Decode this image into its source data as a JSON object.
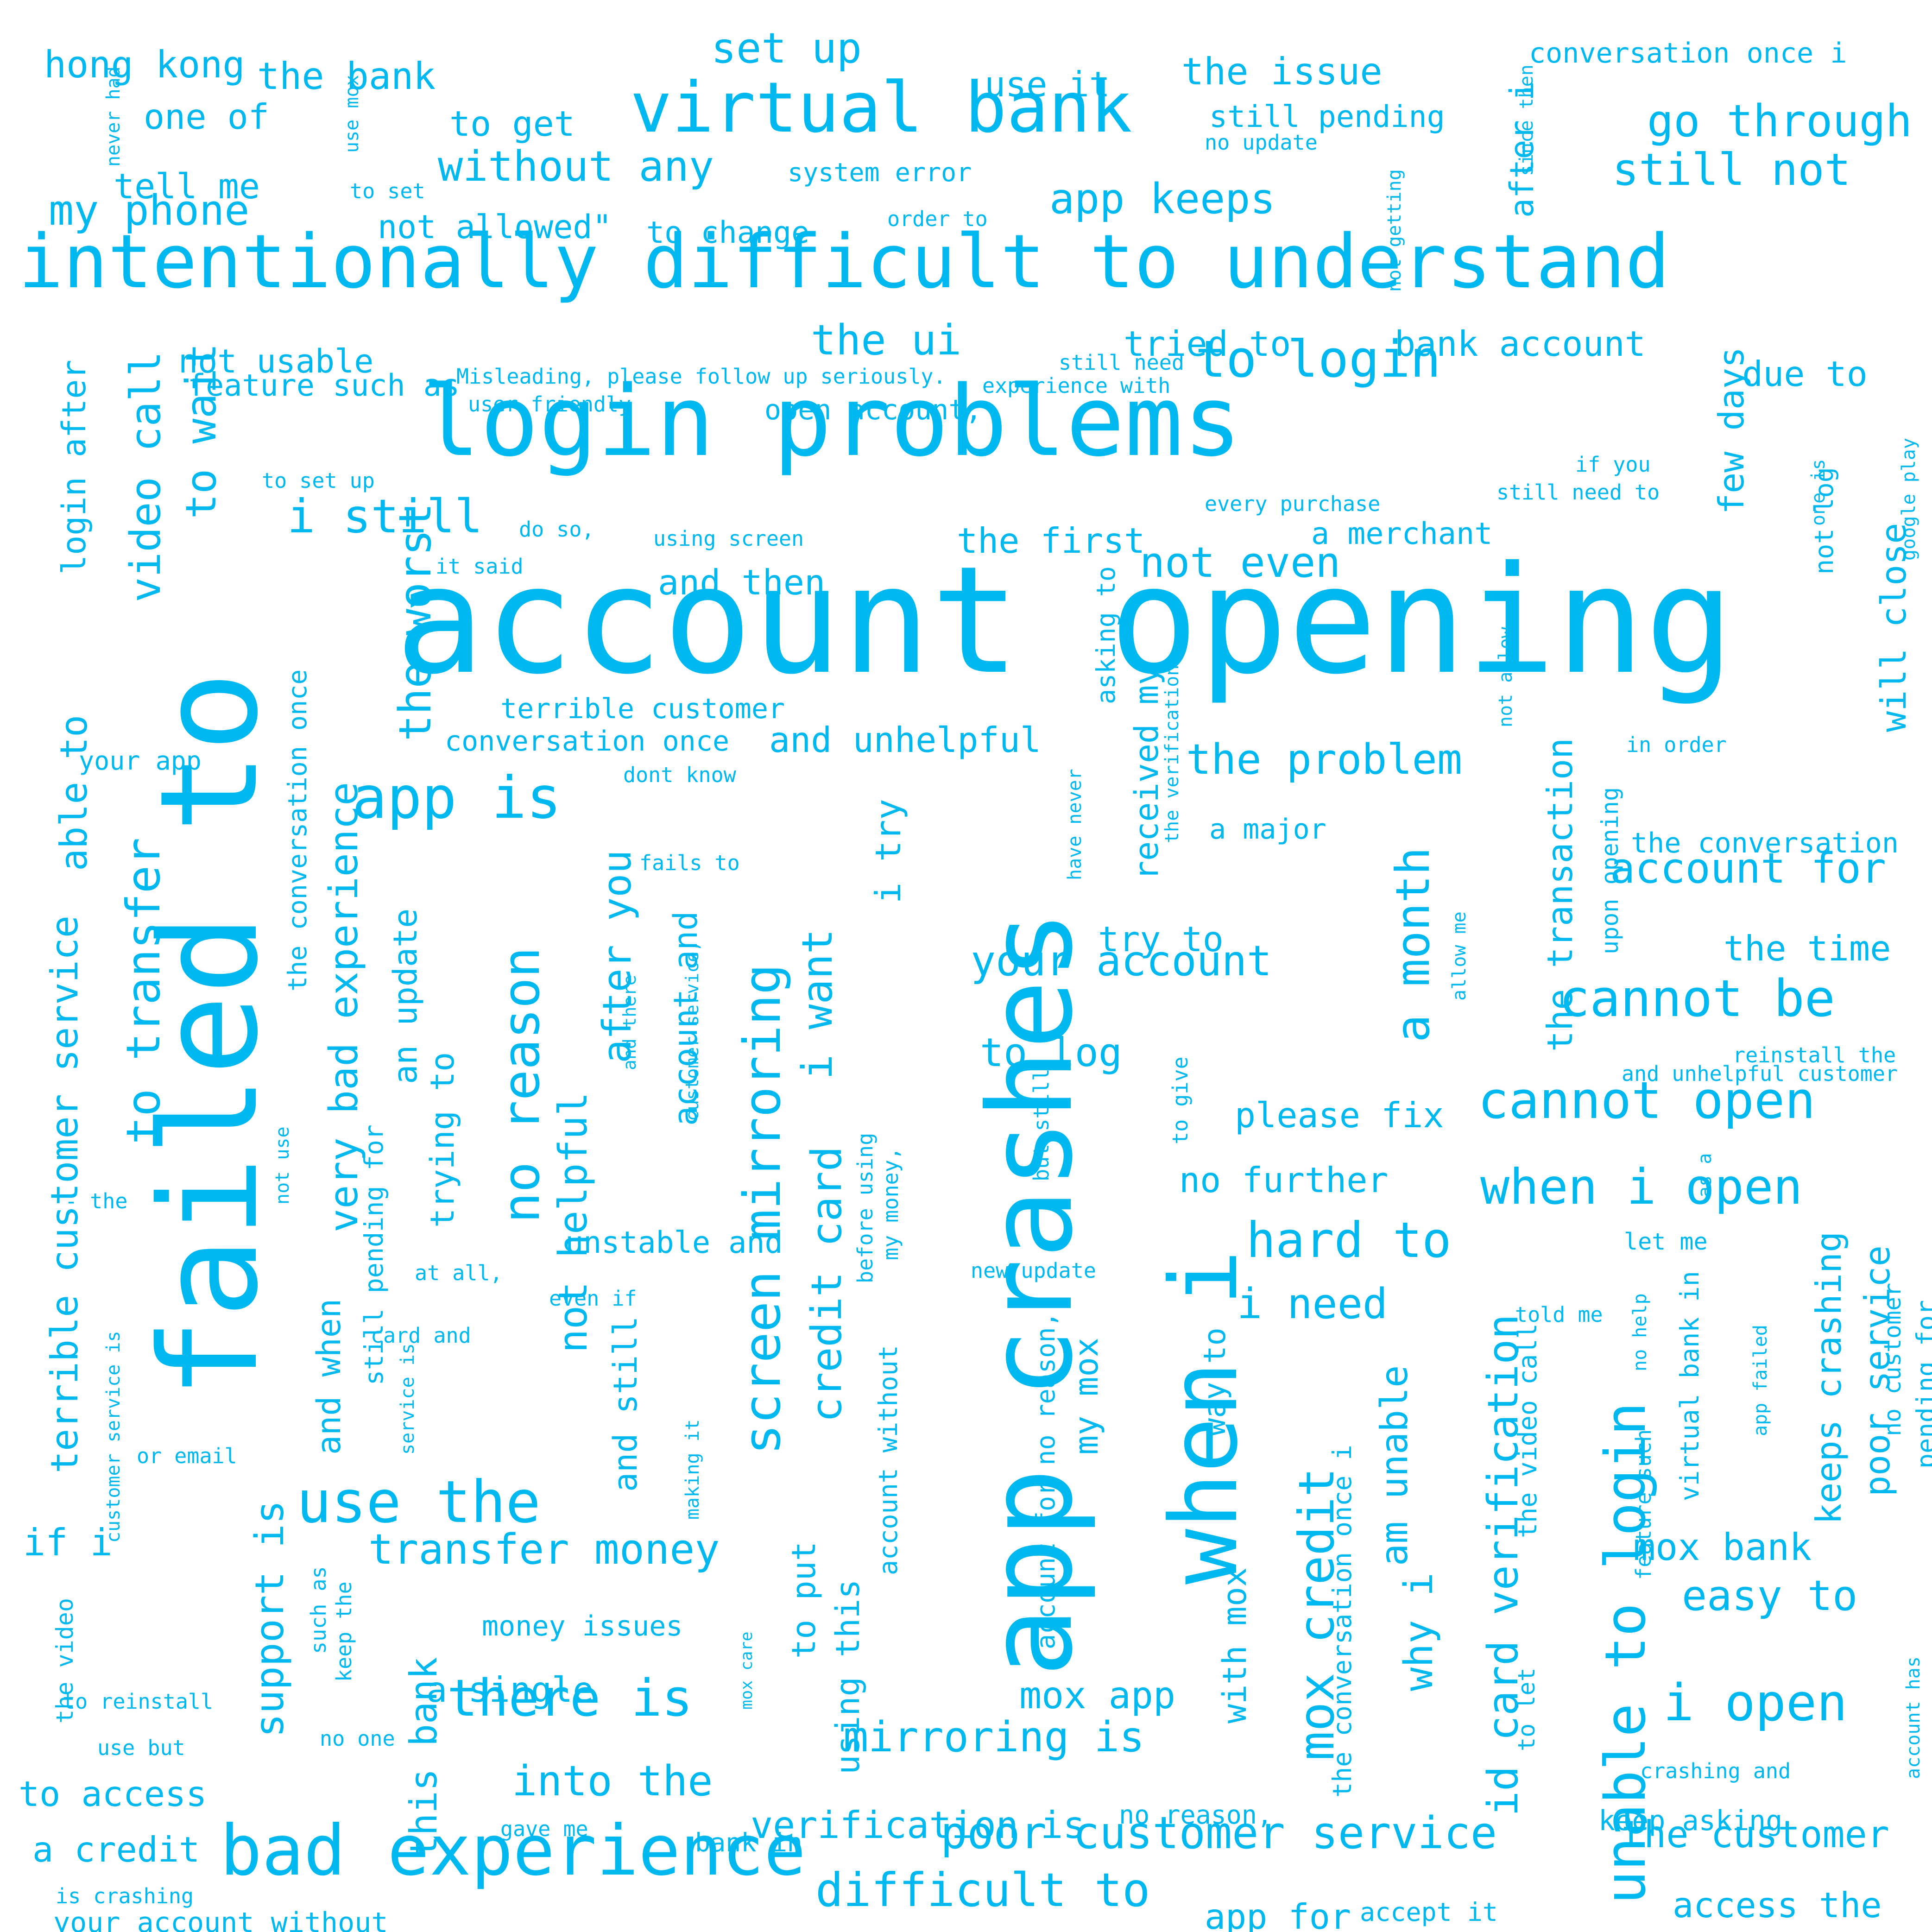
{
  "color": "#00B8F0",
  "words": [
    {
      "text": "account opening",
      "name": "word-account-opening"
    },
    {
      "text": "failed to",
      "name": "word-failed-to"
    },
    {
      "text": "app crashes",
      "name": "word-app-crashes"
    },
    {
      "text": "login problems",
      "name": "word-login-problems"
    },
    {
      "text": "intentionally difficult to understand",
      "name": "word-intentionally-difficult"
    },
    {
      "text": "when i",
      "name": "word-when-i"
    },
    {
      "text": "bad experience",
      "name": "word-bad-experience"
    },
    {
      "text": "virtual bank",
      "name": "word-virtual-bank"
    },
    {
      "text": "unable to login",
      "name": "word-unable-to-login"
    },
    {
      "text": "no reason",
      "name": "word-no-reason"
    },
    {
      "text": "screen mirroring",
      "name": "word-screen-mirroring"
    },
    {
      "text": "mox credit",
      "name": "word-mox-credit"
    },
    {
      "text": "a month",
      "name": "word-a-month"
    },
    {
      "text": "to transfer",
      "name": "word-to-transfer"
    },
    {
      "text": "id card verification",
      "name": "word-id-card-verification"
    },
    {
      "text": "use the",
      "name": "word-use-the"
    },
    {
      "text": "app is",
      "name": "word-app-is"
    },
    {
      "text": "cannot open",
      "name": "word-cannot-open"
    },
    {
      "text": "poor customer service",
      "name": "word-poor-customer-service"
    },
    {
      "text": "i still",
      "name": "word-i-still"
    },
    {
      "text": "the worst",
      "name": "word-the-worst"
    },
    {
      "text": "to login",
      "name": "word-to-login"
    },
    {
      "text": "there is",
      "name": "word-there-is"
    },
    {
      "text": "transfer money",
      "name": "word-transfer-money"
    },
    {
      "text": "hard to",
      "name": "word-hard-to"
    },
    {
      "text": "difficult to",
      "name": "word-difficult-to"
    },
    {
      "text": "when i open",
      "name": "word-when-i-open"
    },
    {
      "text": "i open",
      "name": "word-i-open"
    },
    {
      "text": "cannot be",
      "name": "word-cannot-be"
    },
    {
      "text": "to wait",
      "name": "word-to-wait"
    },
    {
      "text": "video call",
      "name": "word-video-call"
    },
    {
      "text": "very bad experience",
      "name": "word-very-bad-experience"
    },
    {
      "text": "terrible customer service",
      "name": "word-terrible-customer-service"
    },
    {
      "text": "credit card",
      "name": "word-credit-card"
    },
    {
      "text": "i want",
      "name": "word-i-want"
    },
    {
      "text": "mirroring is",
      "name": "word-mirroring-is"
    },
    {
      "text": "into the",
      "name": "word-into-the"
    },
    {
      "text": "your account",
      "name": "word-your-account"
    },
    {
      "text": "set up",
      "name": "word-set-up"
    },
    {
      "text": "go through",
      "name": "word-go-through"
    },
    {
      "text": "still not",
      "name": "word-still-not"
    },
    {
      "text": "without any",
      "name": "word-without-any"
    },
    {
      "text": "app keeps",
      "name": "word-app-keeps"
    },
    {
      "text": "my phone",
      "name": "word-my-phone"
    },
    {
      "text": "the problem",
      "name": "word-the-problem"
    },
    {
      "text": "not even",
      "name": "word-not-even"
    },
    {
      "text": "the ui",
      "name": "word-the-ui"
    },
    {
      "text": "account for",
      "name": "word-account-for"
    },
    {
      "text": "easy to",
      "name": "word-easy-to"
    },
    {
      "text": "the customer",
      "name": "word-the-customer"
    },
    {
      "text": "i need",
      "name": "word-i-need"
    },
    {
      "text": "not helpful",
      "name": "word-not-helpful"
    },
    {
      "text": "after you",
      "name": "word-after-you"
    },
    {
      "text": "support is",
      "name": "word-support-is"
    },
    {
      "text": "this bank",
      "name": "word-this-bank"
    },
    {
      "text": "keeps crashing",
      "name": "word-keeps-crashing"
    },
    {
      "text": "poor service",
      "name": "word-poor-service"
    },
    {
      "text": "mox bank",
      "name": "word-mox-bank"
    },
    {
      "text": "why i",
      "name": "word-why-i"
    },
    {
      "text": "am unable",
      "name": "word-am-unable"
    },
    {
      "text": "able to",
      "name": "word-able-to"
    },
    {
      "text": "if i",
      "name": "word-if-i"
    },
    {
      "text": "login after",
      "name": "word-login-after"
    },
    {
      "text": "an update",
      "name": "word-an-update"
    },
    {
      "text": "trying to",
      "name": "word-trying-to"
    },
    {
      "text": "and when",
      "name": "word-and-when"
    },
    {
      "text": "and still",
      "name": "word-and-still"
    },
    {
      "text": "account and",
      "name": "word-account-and"
    },
    {
      "text": "to log",
      "name": "word-to-log"
    },
    {
      "text": "tried to",
      "name": "word-tried-to"
    },
    {
      "text": "bank account",
      "name": "word-bank-account"
    },
    {
      "text": "please fix",
      "name": "word-please-fix"
    },
    {
      "text": "no further",
      "name": "word-no-further"
    },
    {
      "text": "the first",
      "name": "word-the-first"
    },
    {
      "text": "and then",
      "name": "word-and-then"
    },
    {
      "text": "and unhelpful",
      "name": "word-and-unhelpful"
    },
    {
      "text": "the transaction",
      "name": "word-the-transaction"
    },
    {
      "text": "few days",
      "name": "word-few-days"
    },
    {
      "text": "will close",
      "name": "word-will-close"
    },
    {
      "text": "the time",
      "name": "word-the-time"
    },
    {
      "text": "due to",
      "name": "word-due-to"
    },
    {
      "text": "a merchant",
      "name": "word-a-merchant"
    },
    {
      "text": "to access",
      "name": "word-to-access"
    },
    {
      "text": "a credit",
      "name": "word-a-credit"
    },
    {
      "text": "access the",
      "name": "word-access-the"
    },
    {
      "text": "app for",
      "name": "word-app-for"
    },
    {
      "text": "verification is",
      "name": "word-verification-is"
    },
    {
      "text": "mox app",
      "name": "word-mox-app"
    },
    {
      "text": "with mox",
      "name": "word-with-mox"
    },
    {
      "text": "my mox",
      "name": "word-my-mox"
    },
    {
      "text": "received my",
      "name": "word-received-my"
    },
    {
      "text": "try to",
      "name": "word-try-to"
    },
    {
      "text": "i try",
      "name": "word-i-try"
    },
    {
      "text": "a single",
      "name": "word-a-single"
    },
    {
      "text": "to put",
      "name": "word-to-put"
    },
    {
      "text": "using this",
      "name": "word-using-this"
    },
    {
      "text": "the issue",
      "name": "word-the-issue"
    },
    {
      "text": "the bank",
      "name": "word-the-bank"
    },
    {
      "text": "hong kong",
      "name": "word-hong-kong"
    },
    {
      "text": "one of",
      "name": "word-one-of"
    },
    {
      "text": "tell me",
      "name": "word-tell-me"
    },
    {
      "text": "to get",
      "name": "word-to-get"
    },
    {
      "text": "use it",
      "name": "word-use-it"
    },
    {
      "text": "not allowed\"",
      "name": "word-not-allowed"
    },
    {
      "text": "to change",
      "name": "word-to-change"
    },
    {
      "text": "still pending",
      "name": "word-still-pending"
    },
    {
      "text": "after i",
      "name": "word-after-i"
    },
    {
      "text": "not usable",
      "name": "word-not-usable"
    },
    {
      "text": "feature such as",
      "name": "word-feature-such-as"
    },
    {
      "text": "unstable and",
      "name": "word-unstable-and"
    },
    {
      "text": "money issues",
      "name": "word-money-issues"
    },
    {
      "text": "way to",
      "name": "word-way-to"
    },
    {
      "text": "the video call",
      "name": "word-the-video-call"
    },
    {
      "text": "the conversation once i",
      "name": "word-the-conversation-once-i"
    },
    {
      "text": "the conversation once",
      "name": "word-the-conversation-once"
    },
    {
      "text": "conversation once i",
      "name": "word-conversation-once-i-top"
    },
    {
      "text": "conversation once",
      "name": "word-conversation-once"
    },
    {
      "text": "terrible customer",
      "name": "word-terrible-customer"
    },
    {
      "text": "the conversation",
      "name": "word-the-conversation"
    },
    {
      "text": "a major",
      "name": "word-a-major"
    },
    {
      "text": "keep asking",
      "name": "word-keep-asking"
    },
    {
      "text": "still pending for",
      "name": "word-still-pending-for"
    },
    {
      "text": "pending for",
      "name": "word-pending-for"
    },
    {
      "text": "no customer",
      "name": "word-no-customer"
    },
    {
      "text": "virtual bank in",
      "name": "word-virtual-bank-in"
    },
    {
      "text": "account for no reason,",
      "name": "word-account-for-no-reason"
    },
    {
      "text": "account without",
      "name": "word-account-without"
    },
    {
      "text": "upon opening",
      "name": "word-upon-opening"
    },
    {
      "text": "asking to",
      "name": "word-asking-to"
    },
    {
      "text": "open account,",
      "name": "word-open-account"
    },
    {
      "text": "system error",
      "name": "word-system-error"
    },
    {
      "text": "user friendly",
      "name": "word-user-friendly"
    },
    {
      "text": "your app",
      "name": "word-your-app"
    },
    {
      "text": "your account without",
      "name": "word-your-account-without"
    },
    {
      "text": "is crashing",
      "name": "word-is-crashing"
    },
    {
      "text": "bank in",
      "name": "word-bank-in"
    },
    {
      "text": "no reason,",
      "name": "word-no-reason-comma"
    },
    {
      "text": "accept it",
      "name": "word-accept-it"
    },
    {
      "text": "and unhelpful customer",
      "name": "word-and-unhelpful-customer"
    },
    {
      "text": "reinstall the",
      "name": "word-reinstall-the"
    },
    {
      "text": "in order",
      "name": "word-in-order"
    },
    {
      "text": "if you",
      "name": "word-if-you"
    },
    {
      "text": "still need to",
      "name": "word-still-need-to"
    },
    {
      "text": "still need",
      "name": "word-still-need"
    },
    {
      "text": "experience with",
      "name": "word-experience-with"
    },
    {
      "text": "every purchase",
      "name": "word-every-purchase"
    },
    {
      "text": "not log",
      "name": "word-not-log"
    },
    {
      "text": "google play",
      "name": "word-google-play"
    },
    {
      "text": "one is",
      "name": "word-one-is"
    },
    {
      "text": "since then",
      "name": "word-since-then"
    },
    {
      "text": "not getting",
      "name": "word-not-getting"
    },
    {
      "text": "no update",
      "name": "word-no-update"
    },
    {
      "text": "order to",
      "name": "word-order-to"
    },
    {
      "text": "to set",
      "name": "word-to-set"
    },
    {
      "text": "to set up",
      "name": "word-to-set-up"
    },
    {
      "text": "use mox",
      "name": "word-use-mox"
    },
    {
      "text": "never had",
      "name": "word-never-had"
    },
    {
      "text": "Misleading, please follow up seriously.",
      "name": "word-misleading"
    },
    {
      "text": "do so,",
      "name": "word-do-so"
    },
    {
      "text": "using screen",
      "name": "word-using-screen"
    },
    {
      "text": "it said",
      "name": "word-it-said"
    },
    {
      "text": "dont know",
      "name": "word-dont-know"
    },
    {
      "text": "fails to",
      "name": "word-fails-to"
    },
    {
      "text": "the verification",
      "name": "word-the-verification"
    },
    {
      "text": "have never",
      "name": "word-have-never"
    },
    {
      "text": "not allow",
      "name": "word-not-allow"
    },
    {
      "text": "allow me",
      "name": "word-allow-me"
    },
    {
      "text": "to give",
      "name": "word-to-give"
    },
    {
      "text": "but still",
      "name": "word-but-still"
    },
    {
      "text": "before using",
      "name": "word-before-using"
    },
    {
      "text": "my money,",
      "name": "word-my-money"
    },
    {
      "text": "new update",
      "name": "word-new-update"
    },
    {
      "text": "even if",
      "name": "word-even-if"
    },
    {
      "text": "customer service,",
      "name": "word-customer-service-comma"
    },
    {
      "text": "and there",
      "name": "word-and-there"
    },
    {
      "text": "at all,",
      "name": "word-at-all"
    },
    {
      "text": "card and",
      "name": "word-card-and"
    },
    {
      "text": "service is",
      "name": "word-service-is"
    },
    {
      "text": "making it",
      "name": "word-making-it"
    },
    {
      "text": "or email",
      "name": "word-or-email"
    },
    {
      "text": "customer service is",
      "name": "word-customer-service-is"
    },
    {
      "text": "- the",
      "name": "word-dash-the"
    },
    {
      "text": "not use",
      "name": "word-not-use"
    },
    {
      "text": "such as",
      "name": "word-such-as"
    },
    {
      "text": "keep the",
      "name": "word-keep-the"
    },
    {
      "text": "the video",
      "name": "word-the-video"
    },
    {
      "text": "to reinstall",
      "name": "word-to-reinstall"
    },
    {
      "text": "use but",
      "name": "word-use-but"
    },
    {
      "text": "no one",
      "name": "word-no-one"
    },
    {
      "text": "mox care",
      "name": "word-mox-care"
    },
    {
      "text": "gave me",
      "name": "word-gave-me"
    },
    {
      "text": "to let",
      "name": "word-to-let"
    },
    {
      "text": "told me",
      "name": "word-told-me"
    },
    {
      "text": "no help",
      "name": "word-no-help"
    },
    {
      "text": "feature such",
      "name": "word-feature-such"
    },
    {
      "text": "let me",
      "name": "word-let-me"
    },
    {
      "text": "as a",
      "name": "word-as-a"
    },
    {
      "text": "app failed",
      "name": "word-app-failed"
    },
    {
      "text": "crashing and",
      "name": "word-crashing-and"
    },
    {
      "text": "account has",
      "name": "word-account-has"
    }
  ]
}
